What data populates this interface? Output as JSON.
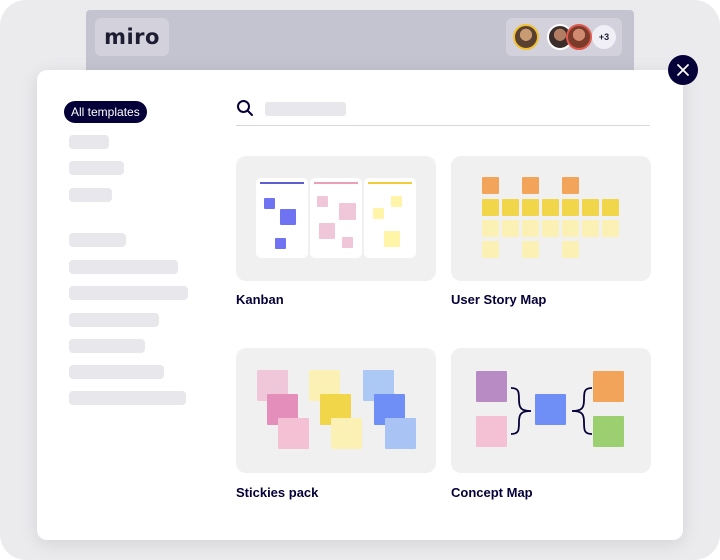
{
  "app": {
    "logo": "miro",
    "collaborators": {
      "extra_count": "+3"
    }
  },
  "close_icon": "close-icon",
  "sidebar": {
    "active_chip": "All templates",
    "placeholder_rows": 11
  },
  "search": {
    "icon": "search-icon",
    "placeholder": ""
  },
  "templates": [
    {
      "label": "Kanban"
    },
    {
      "label": "User Story Map"
    },
    {
      "label": "Stickies pack"
    },
    {
      "label": "Concept Map"
    }
  ],
  "colors": {
    "brand_dark": "#050038",
    "kanban_blue": "#6f73f2",
    "kanban_pink": "#f0c7d9",
    "kanban_yellow": "#fff4a8",
    "orange": "#f2a45a",
    "yellow": "#f2d64a",
    "light_yellow": "#fbf1b5",
    "purple": "#b98bc4",
    "blue": "#6f8ff7",
    "green": "#9ccf6f"
  }
}
